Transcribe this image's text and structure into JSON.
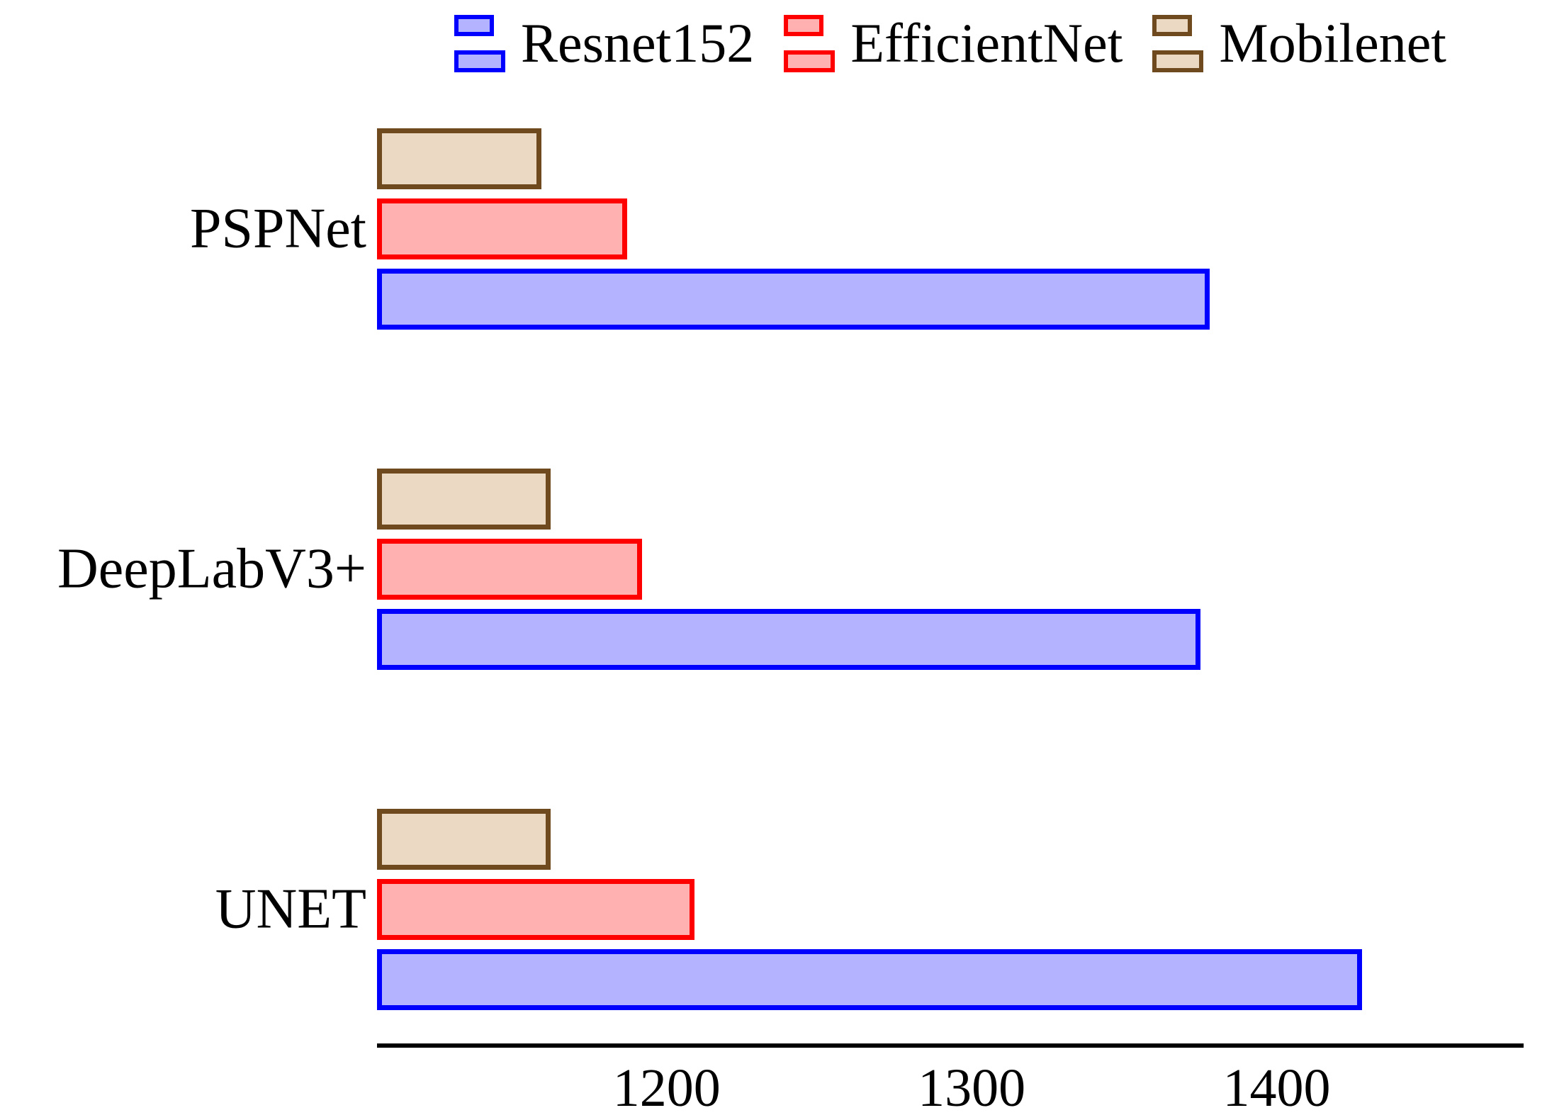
{
  "chart_data": {
    "type": "bar",
    "orientation": "horizontal",
    "title": "",
    "xlabel": "",
    "ylabel": "",
    "categories": [
      "PSPNet",
      "DeepLabV3+",
      "UNET"
    ],
    "series": [
      {
        "name": "Resnet152",
        "values": [
          1378,
          1375,
          1428
        ],
        "fill": "#b3b3ff",
        "border": "#0000ff"
      },
      {
        "name": "EfficientNet",
        "values": [
          1187,
          1192,
          1209
        ],
        "fill": "#ffb1b1",
        "border": "#ff0000"
      },
      {
        "name": "Mobilenet",
        "values": [
          1159,
          1162,
          1162
        ],
        "fill": "#ecd9c4",
        "border": "#6f4a1f"
      }
    ],
    "bar_order_top_to_bottom": [
      "Mobilenet",
      "EfficientNet",
      "Resnet152"
    ],
    "xticks": [
      1200,
      1300,
      1400
    ],
    "xlim": [
      1105,
      1481
    ],
    "grid": false,
    "legend_position": "top",
    "axis_color": "#000000",
    "background_color": "#ffffff"
  }
}
